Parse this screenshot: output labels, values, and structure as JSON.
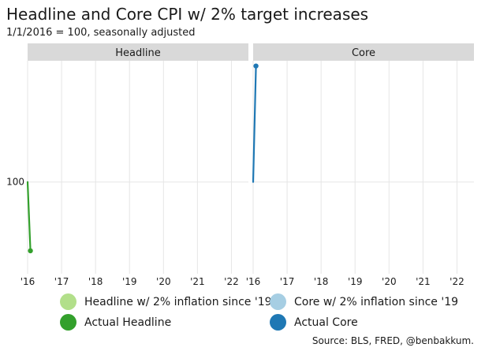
{
  "chart_data": {
    "type": "line",
    "title": "Headline and Core CPI w/ 2% target increases",
    "subtitle": "1/1/2016 = 100, seasonally adjusted",
    "source": "Source: BLS, FRED, @benbakkum.",
    "grid": true,
    "x_ticks": [
      "'16",
      "'17",
      "'18",
      "'19",
      "'20",
      "'21",
      "'22"
    ],
    "x_range": [
      2016,
      2022.5
    ],
    "y_ticks": [
      100
    ],
    "y_range": [
      98.6,
      101.85
    ],
    "legend_position": "bottom",
    "panels": [
      {
        "label": "Headline",
        "series": [
          {
            "name": "Headline w/ 2% inflation since '19",
            "color": "#b2df8a",
            "x": [],
            "y": []
          },
          {
            "name": "Actual Headline",
            "color": "#33a02c",
            "x": [
              2016.0,
              2016.083
            ],
            "y": [
              100.0,
              98.95
            ]
          }
        ]
      },
      {
        "label": "Core",
        "series": [
          {
            "name": "Core w/ 2% inflation since '19",
            "color": "#a6cee3",
            "x": [],
            "y": []
          },
          {
            "name": "Actual Core",
            "color": "#1f78b4",
            "x": [
              2016.0,
              2016.083
            ],
            "y": [
              100.0,
              101.77
            ]
          }
        ]
      }
    ]
  }
}
